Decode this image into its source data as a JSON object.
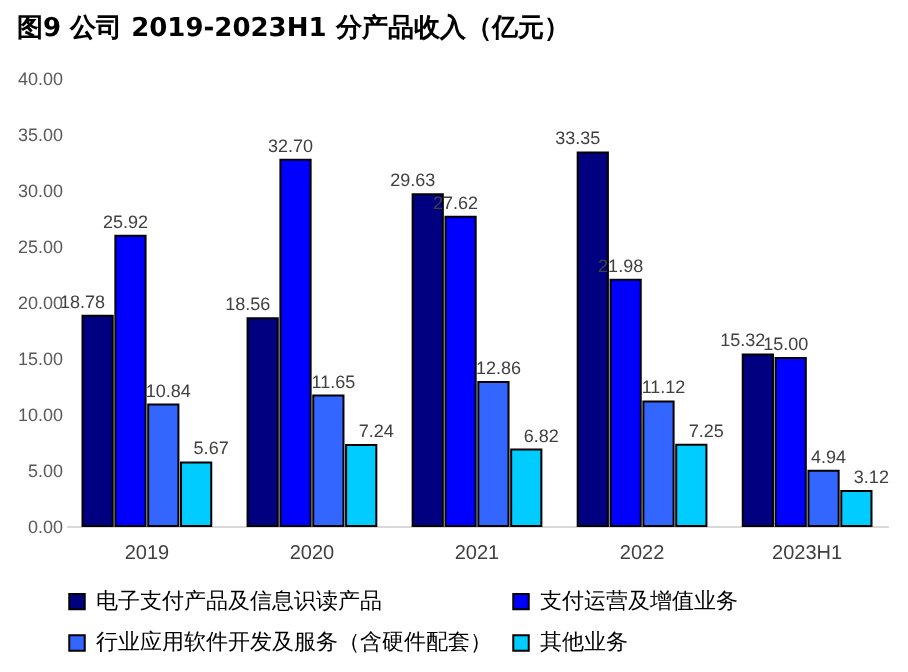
{
  "chart_data": {
    "type": "bar",
    "title": "图9  公司 2019-2023H1 分产品收入（亿元）",
    "categories": [
      "2019",
      "2020",
      "2021",
      "2022",
      "2023H1"
    ],
    "series": [
      {
        "name": "电子支付产品及信息识读产品",
        "color": "#000080",
        "values": [
          18.78,
          18.56,
          29.63,
          33.35,
          15.32
        ],
        "value_labels": [
          "18.78",
          "18.56",
          "29.63",
          "33.35",
          "15.32"
        ]
      },
      {
        "name": "支付运营及增值业务",
        "color": "#0000ff",
        "values": [
          25.92,
          32.7,
          27.62,
          21.98,
          15.0
        ],
        "value_labels": [
          "25.92",
          "32.70",
          "27.62",
          "21.98",
          "15.00"
        ]
      },
      {
        "name": "行业应用软件开发及服务（含硬件配套）",
        "color": "#3366ff",
        "values": [
          10.84,
          11.65,
          12.86,
          11.12,
          4.94
        ],
        "value_labels": [
          "10.84",
          "11.65",
          "12.86",
          "11.12",
          "4.94"
        ]
      },
      {
        "name": "其他业务",
        "color": "#00ccff",
        "values": [
          5.67,
          7.24,
          6.82,
          7.25,
          3.12
        ],
        "value_labels": [
          "5.67",
          "7.24",
          "6.82",
          "7.25",
          "3.12"
        ]
      }
    ],
    "ylim": [
      0,
      40
    ],
    "yticks": [
      {
        "value": 0,
        "label": "0.00"
      },
      {
        "value": 5,
        "label": "5.00"
      },
      {
        "value": 10,
        "label": "10.00"
      },
      {
        "value": 15,
        "label": "15.00"
      },
      {
        "value": 20,
        "label": "20.00"
      },
      {
        "value": 25,
        "label": "25.00"
      },
      {
        "value": 30,
        "label": "30.00"
      },
      {
        "value": 35,
        "label": "35.00"
      },
      {
        "value": 40,
        "label": "40.00"
      }
    ],
    "grid": false,
    "legend": "bottom"
  }
}
